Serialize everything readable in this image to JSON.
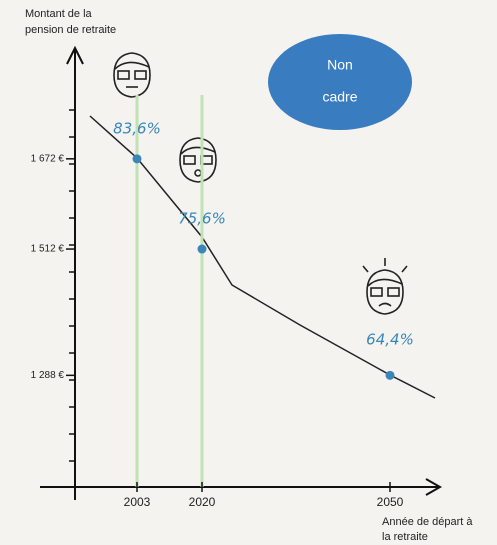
{
  "chart_data": {
    "type": "line",
    "y_label": [
      "Montant de la",
      "pension de retraite"
    ],
    "x_label": [
      "Année de départ à",
      "la retraite"
    ],
    "badge": [
      "Non",
      "cadre"
    ],
    "categories": [
      "2003",
      "2020",
      "2050"
    ],
    "series": [
      {
        "color": "#3a86b8",
        "values": [
          1672,
          1512,
          1288
        ]
      }
    ],
    "annotations": [
      "83,6%",
      "75,6%",
      "64,4%"
    ],
    "ylim": [
      1090,
      1865
    ],
    "yticks": [
      {
        "value": 1288,
        "label": "1 288 €"
      },
      {
        "value": 1512,
        "label": "1 512 €"
      },
      {
        "value": 1672,
        "label": "1 672 €"
      }
    ]
  }
}
